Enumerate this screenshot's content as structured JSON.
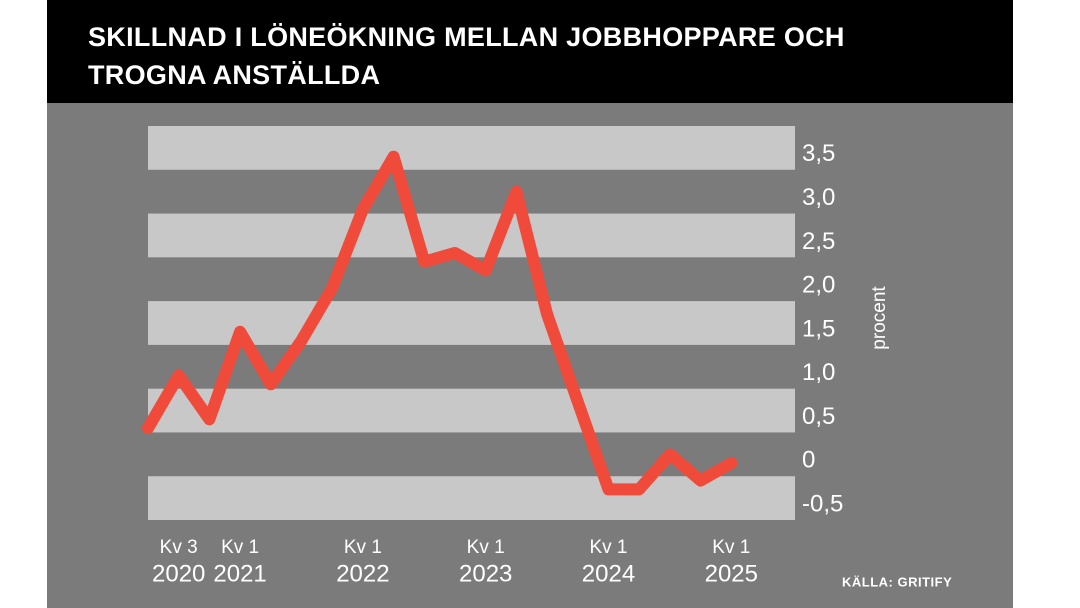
{
  "chart_data": {
    "type": "line",
    "title": [
      "SKILLNAD I LÖNEÖKNING MELLAN JOBBHOPPARE OCH",
      "TROGNA ANSTÄLLDA"
    ],
    "y_label": "procent",
    "source": "KÄLLA: GRITIFY",
    "categories": [
      null,
      [
        "Kv 3",
        "2020"
      ],
      null,
      [
        "Kv 1",
        "2021"
      ],
      null,
      null,
      null,
      [
        "Kv 1",
        "2022"
      ],
      null,
      null,
      null,
      [
        "Kv 1",
        "2023"
      ],
      null,
      null,
      null,
      [
        "Kv 1",
        "2024"
      ],
      null,
      null,
      null,
      [
        "Kv 1",
        "2025"
      ]
    ],
    "series": [
      {
        "name": "Skillnad",
        "color": "#f04a3a",
        "values": [
          0.3,
          0.9,
          0.4,
          1.4,
          0.8,
          1.3,
          1.9,
          2.8,
          3.4,
          2.2,
          2.3,
          2.1,
          3.0,
          1.6,
          0.6,
          -0.4,
          -0.4,
          0,
          -0.3,
          -0.1
        ]
      }
    ],
    "ylim": [
      -0.75,
      3.75
    ],
    "yticks": [
      {
        "value": -0.5,
        "label": "-0,5"
      },
      0,
      {
        "value": 0.5,
        "label": "0,5"
      },
      {
        "value": 1,
        "label": "1,0"
      },
      {
        "value": 1.5,
        "label": "1,5"
      },
      {
        "value": 2,
        "label": "2,0"
      },
      {
        "value": 2.5,
        "label": "2,5"
      },
      {
        "value": 3,
        "label": "3,0"
      },
      {
        "value": 3.5,
        "label": "3,5"
      }
    ],
    "grid": "bands"
  }
}
